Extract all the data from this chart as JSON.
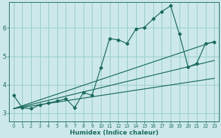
{
  "xlabel": "Humidex (Indice chaleur)",
  "background_color": "#cce8e8",
  "grid_color": "#99cccc",
  "line_color": "#1a6b5a",
  "xlim": [
    -0.5,
    23.5
  ],
  "ylim": [
    2.7,
    6.9
  ],
  "xtick_labels": [
    "0",
    "1",
    "2",
    "3",
    "4",
    "5",
    "6",
    "7",
    "8",
    "9",
    "10",
    "11",
    "12",
    "13",
    "14",
    "15",
    "16",
    "17",
    "18",
    "19",
    "20",
    "21",
    "22",
    "23"
  ],
  "ytick_values": [
    3,
    4,
    5,
    6
  ],
  "series1_x": [
    0,
    1,
    2,
    3,
    4,
    5,
    6,
    7,
    8,
    9,
    10,
    11,
    12,
    13,
    14,
    15,
    16,
    17,
    18,
    19,
    20,
    21,
    22,
    23
  ],
  "series1_y": [
    3.62,
    3.18,
    3.15,
    3.28,
    3.35,
    3.42,
    3.5,
    3.18,
    3.72,
    3.62,
    4.6,
    5.62,
    5.58,
    5.45,
    5.95,
    6.02,
    6.32,
    6.58,
    6.78,
    5.78,
    4.62,
    4.75,
    5.45,
    5.5
  ],
  "trend1_x": [
    0,
    23
  ],
  "trend1_y": [
    3.15,
    5.52
  ],
  "trend2_x": [
    0,
    23
  ],
  "trend2_y": [
    3.15,
    4.85
  ],
  "trend3_x": [
    0,
    23
  ],
  "trend3_y": [
    3.15,
    4.22
  ]
}
